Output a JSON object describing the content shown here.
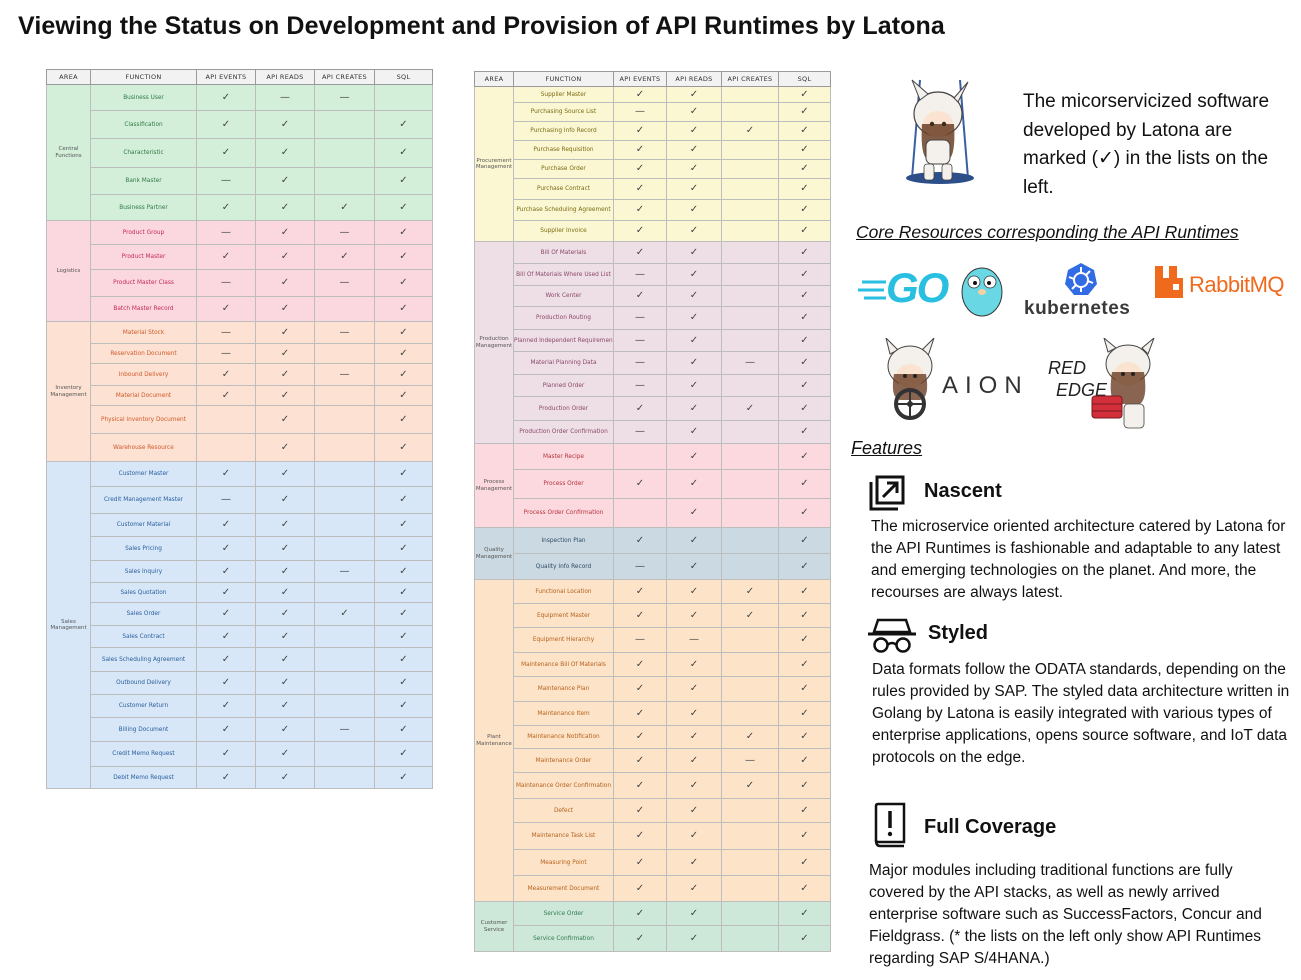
{
  "page": {
    "title": "Viewing the Status on Development and Provision of API Runtimes by Latona"
  },
  "table_headers": [
    "AREA",
    "FUNCTION",
    "API EVENTS",
    "API READS",
    "API CREATES",
    "SQL"
  ],
  "table_left": {
    "groups": [
      {
        "area": "Central Functions",
        "color": "central",
        "rows": [
          {
            "fn": "Business User",
            "m": [
              "✓",
              "—",
              "—",
              ""
            ],
            "h": 26
          },
          {
            "fn": "Classification",
            "m": [
              "✓",
              "✓",
              "",
              "✓"
            ],
            "h": 28
          },
          {
            "fn": "Characteristic",
            "m": [
              "✓",
              "✓",
              "",
              "✓"
            ],
            "h": 29
          },
          {
            "fn": "Bank Master",
            "m": [
              "—",
              "✓",
              "",
              "✓"
            ],
            "h": 27
          },
          {
            "fn": "Business Partner",
            "m": [
              "✓",
              "✓",
              "✓",
              "✓"
            ],
            "h": 26
          }
        ]
      },
      {
        "area": "Logistics",
        "color": "log",
        "rows": [
          {
            "fn": "Product Group",
            "m": [
              "—",
              "✓",
              "—",
              "✓"
            ],
            "h": 24
          },
          {
            "fn": "Product Master",
            "m": [
              "✓",
              "✓",
              "✓",
              "✓"
            ],
            "h": 25
          },
          {
            "fn": "Product Master Class",
            "m": [
              "—",
              "✓",
              "—",
              "✓"
            ],
            "h": 27
          },
          {
            "fn": "Batch Master Record",
            "m": [
              "✓",
              "✓",
              "",
              "✓"
            ],
            "h": 25
          }
        ]
      },
      {
        "area": "Inventory Management",
        "color": "inv",
        "rows": [
          {
            "fn": "Material Stock",
            "m": [
              "—",
              "✓",
              "—",
              "✓"
            ],
            "h": 22
          },
          {
            "fn": "Reservation Document",
            "m": [
              "—",
              "✓",
              "",
              "✓"
            ],
            "h": 20
          },
          {
            "fn": "Inbound Delivery",
            "m": [
              "✓",
              "✓",
              "—",
              "✓"
            ],
            "h": 22
          },
          {
            "fn": "Material Document",
            "m": [
              "✓",
              "✓",
              "",
              "✓"
            ],
            "h": 20
          },
          {
            "fn": "Physical Inventory Document",
            "m": [
              "",
              "✓",
              "",
              "✓"
            ],
            "h": 28
          },
          {
            "fn": "Warehouse Resource",
            "m": [
              "",
              "✓",
              "",
              "✓"
            ],
            "h": 28
          }
        ]
      },
      {
        "area": "Sales Management",
        "color": "sales",
        "rows": [
          {
            "fn": "Customer Master",
            "m": [
              "✓",
              "✓",
              "",
              "✓"
            ],
            "h": 25
          },
          {
            "fn": "Credit Management Master",
            "m": [
              "—",
              "✓",
              "",
              "✓"
            ],
            "h": 27
          },
          {
            "fn": "Customer Material",
            "m": [
              "✓",
              "✓",
              "",
              "✓"
            ],
            "h": 23
          },
          {
            "fn": "Sales Pricing",
            "m": [
              "✓",
              "✓",
              "",
              "✓"
            ],
            "h": 24
          },
          {
            "fn": "Sales Inquiry",
            "m": [
              "✓",
              "✓",
              "—",
              "✓"
            ],
            "h": 22
          },
          {
            "fn": "Sales Quotation",
            "m": [
              "✓",
              "✓",
              "",
              "✓"
            ],
            "h": 20
          },
          {
            "fn": "Sales Order",
            "m": [
              "✓",
              "✓",
              "✓",
              "✓"
            ],
            "h": 23
          },
          {
            "fn": "Sales Contract",
            "m": [
              "✓",
              "✓",
              "",
              "✓"
            ],
            "h": 22
          },
          {
            "fn": "Sales Scheduling Agreement",
            "m": [
              "✓",
              "✓",
              "",
              "✓"
            ],
            "h": 24
          },
          {
            "fn": "Outbound Delivery",
            "m": [
              "✓",
              "✓",
              "",
              "✓"
            ],
            "h": 23
          },
          {
            "fn": "Customer Return",
            "m": [
              "✓",
              "✓",
              "",
              "✓"
            ],
            "h": 23
          },
          {
            "fn": "Billing Document",
            "m": [
              "✓",
              "✓",
              "—",
              "✓"
            ],
            "h": 24
          },
          {
            "fn": "Credit Memo Request",
            "m": [
              "✓",
              "✓",
              "",
              "✓"
            ],
            "h": 25
          },
          {
            "fn": "Debit Memo Request",
            "m": [
              "✓",
              "✓",
              "",
              "✓"
            ],
            "h": 22
          }
        ]
      }
    ]
  },
  "table_right": {
    "groups": [
      {
        "area": "Procurement Management",
        "color": "proc",
        "rows": [
          {
            "fn": "Supplier Master",
            "m": [
              "✓",
              "✓",
              "",
              "✓"
            ],
            "h": 16
          },
          {
            "fn": "Purchasing Source List",
            "m": [
              "—",
              "✓",
              "",
              "✓"
            ],
            "h": 19
          },
          {
            "fn": "Purchasing Info Record",
            "m": [
              "✓",
              "✓",
              "✓",
              "✓"
            ],
            "h": 19
          },
          {
            "fn": "Purchase Requisition",
            "m": [
              "✓",
              "✓",
              "",
              "✓"
            ],
            "h": 19
          },
          {
            "fn": "Purchase Order",
            "m": [
              "✓",
              "✓",
              "",
              "✓"
            ],
            "h": 19
          },
          {
            "fn": "Purchase Contract",
            "m": [
              "✓",
              "✓",
              "",
              "✓"
            ],
            "h": 21
          },
          {
            "fn": "Purchase Scheduling Agreement",
            "m": [
              "✓",
              "✓",
              "",
              "✓"
            ],
            "h": 21
          },
          {
            "fn": "Supplier Invoice",
            "m": [
              "✓",
              "✓",
              "",
              "✓"
            ],
            "h": 21
          }
        ]
      },
      {
        "area": "Production Management",
        "color": "prod",
        "rows": [
          {
            "fn": "Bill Of Materials",
            "m": [
              "✓",
              "✓",
              "",
              "✓"
            ],
            "h": 22
          },
          {
            "fn": "Bill Of Materials Where Used List",
            "m": [
              "—",
              "✓",
              "",
              "✓"
            ],
            "h": 22
          },
          {
            "fn": "Work Center",
            "m": [
              "✓",
              "✓",
              "",
              "✓"
            ],
            "h": 21
          },
          {
            "fn": "Production Routing",
            "m": [
              "—",
              "✓",
              "",
              "✓"
            ],
            "h": 23
          },
          {
            "fn": "Planned Independent Requirement",
            "m": [
              "—",
              "✓",
              "",
              "✓"
            ],
            "h": 22
          },
          {
            "fn": "Material Planning Data",
            "m": [
              "—",
              "✓",
              "—",
              "✓"
            ],
            "h": 23
          },
          {
            "fn": "Planned Order",
            "m": [
              "—",
              "✓",
              "",
              "✓"
            ],
            "h": 22
          },
          {
            "fn": "Production Order",
            "m": [
              "✓",
              "✓",
              "✓",
              "✓"
            ],
            "h": 24
          },
          {
            "fn": "Production Order Confirmation",
            "m": [
              "—",
              "✓",
              "",
              "✓"
            ],
            "h": 23
          }
        ]
      },
      {
        "area": "Process Management",
        "color": "pm",
        "rows": [
          {
            "fn": "Master Recipe",
            "m": [
              "",
              "✓",
              "",
              "✓"
            ],
            "h": 26
          },
          {
            "fn": "Process Order",
            "m": [
              "✓",
              "✓",
              "",
              "✓"
            ],
            "h": 29
          },
          {
            "fn": "Process Order Confirmation",
            "m": [
              "",
              "✓",
              "",
              "✓"
            ],
            "h": 29
          }
        ]
      },
      {
        "area": "Quality Management",
        "color": "qm",
        "rows": [
          {
            "fn": "Inspection Plan",
            "m": [
              "✓",
              "✓",
              "",
              "✓"
            ],
            "h": 26
          },
          {
            "fn": "Quality Info Record",
            "m": [
              "—",
              "✓",
              "",
              "✓"
            ],
            "h": 26
          }
        ]
      },
      {
        "area": "Plant Maintenance",
        "color": "plant",
        "rows": [
          {
            "fn": "Functional Location",
            "m": [
              "✓",
              "✓",
              "✓",
              "✓"
            ],
            "h": 24
          },
          {
            "fn": "Equipment Master",
            "m": [
              "✓",
              "✓",
              "✓",
              "✓"
            ],
            "h": 24
          },
          {
            "fn": "Equipment Hierarchy",
            "m": [
              "—",
              "—",
              "",
              "✓"
            ],
            "h": 25
          },
          {
            "fn": "Maintenance Bill Of Materials",
            "m": [
              "✓",
              "✓",
              "",
              "✓"
            ],
            "h": 24
          },
          {
            "fn": "Maintenance Plan",
            "m": [
              "✓",
              "✓",
              "",
              "✓"
            ],
            "h": 25
          },
          {
            "fn": "Maintenance Item",
            "m": [
              "✓",
              "✓",
              "",
              "✓"
            ],
            "h": 24
          },
          {
            "fn": "Maintenance Notification",
            "m": [
              "✓",
              "✓",
              "✓",
              "✓"
            ],
            "h": 23
          },
          {
            "fn": "Maintenance Order",
            "m": [
              "✓",
              "✓",
              "—",
              "✓"
            ],
            "h": 24
          },
          {
            "fn": "Maintenance Order Confirmation",
            "m": [
              "✓",
              "✓",
              "✓",
              "✓"
            ],
            "h": 26
          },
          {
            "fn": "Defect",
            "m": [
              "✓",
              "✓",
              "",
              "✓"
            ],
            "h": 24
          },
          {
            "fn": "Maintenance Task List",
            "m": [
              "✓",
              "✓",
              "",
              "✓"
            ],
            "h": 27
          },
          {
            "fn": "Measuring Point",
            "m": [
              "✓",
              "✓",
              "",
              "✓"
            ],
            "h": 26
          },
          {
            "fn": "Measurement Document",
            "m": [
              "✓",
              "✓",
              "",
              "✓"
            ],
            "h": 26
          }
        ]
      },
      {
        "area": "Customer Service",
        "color": "cs",
        "rows": [
          {
            "fn": "Service Order",
            "m": [
              "✓",
              "✓",
              "",
              "✓"
            ],
            "h": 24
          },
          {
            "fn": "Service Confirmation",
            "m": [
              "✓",
              "✓",
              "",
              "✓"
            ],
            "h": 26
          }
        ]
      }
    ]
  },
  "intro": {
    "text": "The micorservicized software developed by Latona are marked (✓) in the lists on the left."
  },
  "core_resources": {
    "title": "Core Resources corresponding the API Runtimes",
    "logos": {
      "go": "GO",
      "kubernetes": "kubernetes",
      "rabbitmq": "RabbitMQ",
      "aion": "AION",
      "rededge_1": "RED",
      "rededge_2": "EDGE"
    },
    "colors": {
      "go": "#29bfe0",
      "kubernetes": "#326ce5",
      "rabbitmq": "#f06a1d"
    }
  },
  "features": {
    "title": "Features",
    "items": [
      {
        "icon": "expand-arrow-icon",
        "heading": "Nascent",
        "body": "The microservice oriented architecture catered by Latona for the API Runtimes is fashionable and adaptable to any latest and emerging technologies on the planet. And more, the recourses are always latest."
      },
      {
        "icon": "incognito-hat-glasses-icon",
        "heading": "Styled",
        "body": "Data formats follow the ODATA standards, depending on the rules provided by SAP. The styled data architecture written in Golang by Latona is easily integrated with various types of enterprise applications, opens source software, and IoT data protocols on the edge."
      },
      {
        "icon": "book-exclamation-icon",
        "heading": "Full Coverage",
        "body": "Major modules including traditional functions are fully covered by the API stacks, as well as newly arrived enterprise software such as SuccessFactors, Concur and Fieldgrass. (* the lists on the left only show API Runtimes regarding SAP S/4HANA.)"
      }
    ]
  }
}
